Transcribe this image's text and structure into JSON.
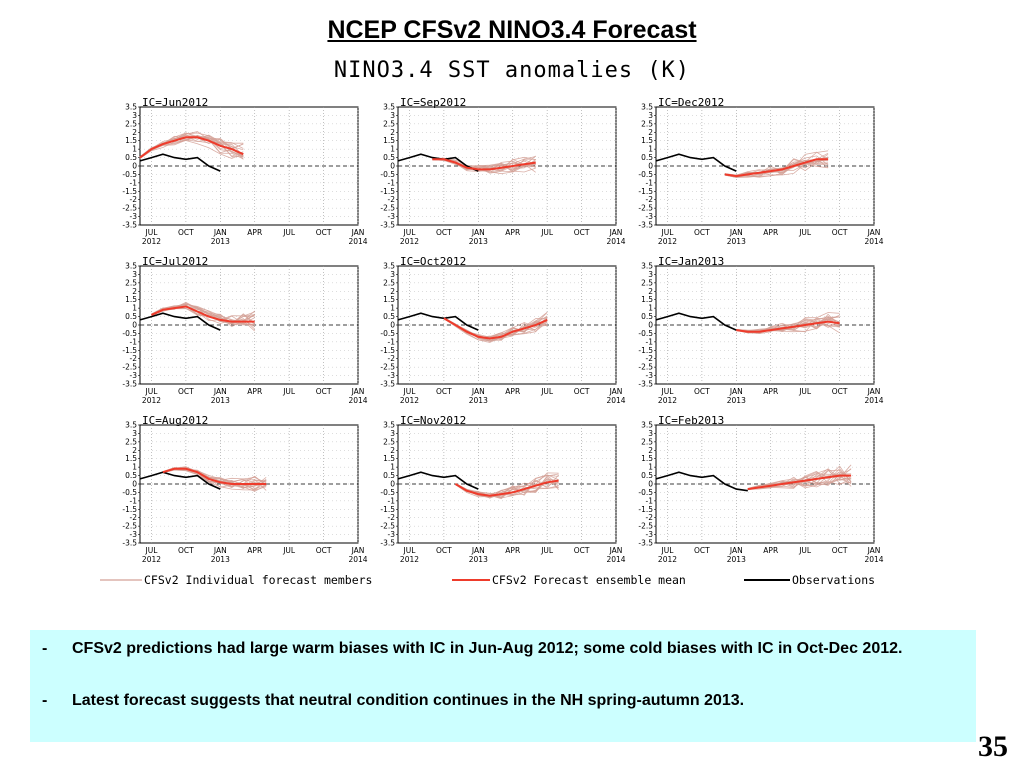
{
  "slide": {
    "title": "NCEP CFSv2 NINO3.4 Forecast",
    "figure_title": "NINO3.4  SST  anomalies  (K)",
    "page_number": "35"
  },
  "bullets": [
    {
      "marker": "-",
      "text": "CFSv2 predictions had large warm biases with IC in Jun-Aug 2012; some cold biases with IC in Oct-Dec 2012."
    },
    {
      "marker": "-",
      "text": "Latest forecast suggests  that neutral condition continues in the NH spring-autumn 2013."
    }
  ],
  "colors": {
    "members": "#d4a196",
    "mean": "#ee3b2b",
    "observations": "#000000",
    "bullet_bg": "#ccffff"
  },
  "chart_data": {
    "type": "line",
    "x_axis": {
      "unit": "month",
      "range": [
        "2012-06",
        "2014-01"
      ],
      "ticks": [
        {
          "date": "2012-07",
          "label": [
            "JUL",
            "2012"
          ]
        },
        {
          "date": "2012-10",
          "label": [
            "OCT",
            ""
          ]
        },
        {
          "date": "2013-01",
          "label": [
            "JAN",
            "2013"
          ]
        },
        {
          "date": "2013-04",
          "label": [
            "APR",
            ""
          ]
        },
        {
          "date": "2013-07",
          "label": [
            "JUL",
            ""
          ]
        },
        {
          "date": "2013-10",
          "label": [
            "OCT",
            ""
          ]
        },
        {
          "date": "2014-01",
          "label": [
            "JAN",
            "2014"
          ]
        }
      ]
    },
    "y_axis": {
      "range": [
        -3.5,
        3.5
      ],
      "ticks": [
        3.5,
        3,
        2.5,
        2,
        1.5,
        1,
        0.5,
        0,
        -0.5,
        -1,
        -1.5,
        -2,
        -2.5,
        -3,
        -3.5
      ],
      "tick_labels": [
        "3.5",
        "3",
        "2.5",
        "2",
        "1.5",
        "1",
        "0.5",
        "0",
        "-0.5",
        "-1",
        "-1.5",
        "-2",
        "-2.5",
        "-3",
        "-3.5"
      ],
      "zero_line": "dashed"
    },
    "grid": "dotted",
    "legend": {
      "position": "bottom",
      "entries": [
        {
          "key": "members",
          "label": "CFSv2 Individual forecast members"
        },
        {
          "key": "mean",
          "label": "CFSv2 Forecast ensemble mean"
        },
        {
          "key": "observations",
          "label": "Observations"
        }
      ]
    },
    "panels": [
      {
        "label": "IC=Jun2012",
        "observations": {
          "dates": [
            "2012-06",
            "2012-07",
            "2012-08",
            "2012-09",
            "2012-10",
            "2012-11",
            "2012-12",
            "2013-01"
          ],
          "values": [
            0.3,
            0.5,
            0.7,
            0.5,
            0.4,
            0.5,
            0.0,
            -0.3
          ]
        },
        "ensemble_mean": {
          "dates": [
            "2012-06",
            "2012-07",
            "2012-08",
            "2012-09",
            "2012-10",
            "2012-11",
            "2012-12",
            "2013-01",
            "2013-02",
            "2013-03"
          ],
          "values": [
            0.5,
            1.0,
            1.3,
            1.5,
            1.7,
            1.7,
            1.5,
            1.2,
            1.0,
            0.7
          ]
        },
        "member_spread": [
          0.5,
          1.0
        ]
      },
      {
        "label": "IC=Sep2012",
        "observations": {
          "dates": [
            "2012-06",
            "2012-07",
            "2012-08",
            "2012-09",
            "2012-10",
            "2012-11",
            "2012-12",
            "2013-01"
          ],
          "values": [
            0.3,
            0.5,
            0.7,
            0.5,
            0.4,
            0.5,
            0.0,
            -0.3
          ]
        },
        "ensemble_mean": {
          "dates": [
            "2012-09",
            "2012-10",
            "2012-11",
            "2012-12",
            "2013-01",
            "2013-02",
            "2013-03",
            "2013-04",
            "2013-05",
            "2013-06"
          ],
          "values": [
            0.4,
            0.4,
            0.2,
            -0.1,
            -0.2,
            -0.2,
            -0.1,
            0.0,
            0.1,
            0.2
          ]
        },
        "member_spread": [
          0.3,
          0.9
        ]
      },
      {
        "label": "IC=Dec2012",
        "observations": {
          "dates": [
            "2012-06",
            "2012-07",
            "2012-08",
            "2012-09",
            "2012-10",
            "2012-11",
            "2012-12",
            "2013-01"
          ],
          "values": [
            0.3,
            0.5,
            0.7,
            0.5,
            0.4,
            0.5,
            0.0,
            -0.3
          ]
        },
        "ensemble_mean": {
          "dates": [
            "2012-12",
            "2013-01",
            "2013-02",
            "2013-03",
            "2013-04",
            "2013-05",
            "2013-06",
            "2013-07",
            "2013-08",
            "2013-09"
          ],
          "values": [
            -0.5,
            -0.6,
            -0.5,
            -0.4,
            -0.3,
            -0.2,
            0.0,
            0.2,
            0.4,
            0.4
          ]
        },
        "member_spread": [
          0.3,
          1.1
        ]
      },
      {
        "label": "IC=Jul2012",
        "observations": {
          "dates": [
            "2012-06",
            "2012-07",
            "2012-08",
            "2012-09",
            "2012-10",
            "2012-11",
            "2012-12",
            "2013-01"
          ],
          "values": [
            0.3,
            0.5,
            0.7,
            0.5,
            0.4,
            0.5,
            0.0,
            -0.3
          ]
        },
        "ensemble_mean": {
          "dates": [
            "2012-07",
            "2012-08",
            "2012-09",
            "2012-10",
            "2012-11",
            "2012-12",
            "2013-01",
            "2013-02",
            "2013-03",
            "2013-04"
          ],
          "values": [
            0.6,
            0.9,
            1.0,
            1.1,
            0.8,
            0.5,
            0.3,
            0.2,
            0.2,
            0.2
          ]
        },
        "member_spread": [
          0.4,
          0.9
        ]
      },
      {
        "label": "IC=Oct2012",
        "observations": {
          "dates": [
            "2012-06",
            "2012-07",
            "2012-08",
            "2012-09",
            "2012-10",
            "2012-11",
            "2012-12",
            "2013-01"
          ],
          "values": [
            0.3,
            0.5,
            0.7,
            0.5,
            0.4,
            0.5,
            0.0,
            -0.3
          ]
        },
        "ensemble_mean": {
          "dates": [
            "2012-10",
            "2012-11",
            "2012-12",
            "2013-01",
            "2013-02",
            "2013-03",
            "2013-04",
            "2013-05",
            "2013-06",
            "2013-07"
          ],
          "values": [
            0.4,
            0.0,
            -0.4,
            -0.7,
            -0.8,
            -0.7,
            -0.4,
            -0.2,
            0.0,
            0.3
          ]
        },
        "member_spread": [
          0.3,
          0.9
        ]
      },
      {
        "label": "IC=Jan2013",
        "observations": {
          "dates": [
            "2012-06",
            "2012-07",
            "2012-08",
            "2012-09",
            "2012-10",
            "2012-11",
            "2012-12",
            "2013-01"
          ],
          "values": [
            0.3,
            0.5,
            0.7,
            0.5,
            0.4,
            0.5,
            0.0,
            -0.3
          ]
        },
        "ensemble_mean": {
          "dates": [
            "2013-01",
            "2013-02",
            "2013-03",
            "2013-04",
            "2013-05",
            "2013-06",
            "2013-07",
            "2013-08",
            "2013-09",
            "2013-10"
          ],
          "values": [
            -0.3,
            -0.4,
            -0.4,
            -0.3,
            -0.2,
            -0.1,
            0.0,
            0.1,
            0.2,
            0.1
          ]
        },
        "member_spread": [
          0.3,
          1.0
        ]
      },
      {
        "label": "IC=Aug2012",
        "observations": {
          "dates": [
            "2012-06",
            "2012-07",
            "2012-08",
            "2012-09",
            "2012-10",
            "2012-11",
            "2012-12",
            "2013-01"
          ],
          "values": [
            0.3,
            0.5,
            0.7,
            0.5,
            0.4,
            0.5,
            0.0,
            -0.3
          ]
        },
        "ensemble_mean": {
          "dates": [
            "2012-08",
            "2012-09",
            "2012-10",
            "2012-11",
            "2012-12",
            "2013-01",
            "2013-02",
            "2013-03",
            "2013-04",
            "2013-05"
          ],
          "values": [
            0.7,
            0.9,
            0.9,
            0.7,
            0.3,
            0.1,
            0.0,
            0.0,
            0.0,
            0.0
          ]
        },
        "member_spread": [
          0.3,
          0.8
        ]
      },
      {
        "label": "IC=Nov2012",
        "observations": {
          "dates": [
            "2012-06",
            "2012-07",
            "2012-08",
            "2012-09",
            "2012-10",
            "2012-11",
            "2012-12",
            "2013-01"
          ],
          "values": [
            0.3,
            0.5,
            0.7,
            0.5,
            0.4,
            0.5,
            0.0,
            -0.3
          ]
        },
        "ensemble_mean": {
          "dates": [
            "2012-11",
            "2012-12",
            "2013-01",
            "2013-02",
            "2013-03",
            "2013-04",
            "2013-05",
            "2013-06",
            "2013-07",
            "2013-08"
          ],
          "values": [
            0.0,
            -0.4,
            -0.6,
            -0.7,
            -0.6,
            -0.5,
            -0.3,
            -0.1,
            0.1,
            0.2
          ]
        },
        "member_spread": [
          0.3,
          1.1
        ]
      },
      {
        "label": "IC=Feb2013",
        "observations": {
          "dates": [
            "2012-06",
            "2012-07",
            "2012-08",
            "2012-09",
            "2012-10",
            "2012-11",
            "2012-12",
            "2013-01",
            "2013-02"
          ],
          "values": [
            0.3,
            0.5,
            0.7,
            0.5,
            0.4,
            0.5,
            0.0,
            -0.3,
            -0.4
          ]
        },
        "ensemble_mean": {
          "dates": [
            "2013-02",
            "2013-03",
            "2013-04",
            "2013-05",
            "2013-06",
            "2013-07",
            "2013-08",
            "2013-09",
            "2013-10",
            "2013-11"
          ],
          "values": [
            -0.3,
            -0.2,
            -0.1,
            0.0,
            0.1,
            0.2,
            0.3,
            0.4,
            0.5,
            0.5
          ]
        },
        "member_spread": [
          0.3,
          1.3
        ]
      }
    ]
  }
}
